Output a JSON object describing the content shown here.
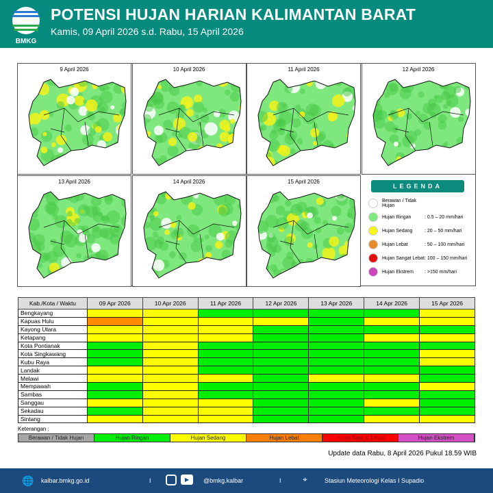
{
  "header": {
    "logo_text": "BMKG",
    "title": "POTENSI HUJAN HARIAN KALIMANTAN BARAT",
    "subtitle": "Kamis, 09 April 2026 s.d. Rabu, 15 April 2026"
  },
  "maps": [
    {
      "date": "9 April 2026",
      "yellow": 0.3
    },
    {
      "date": "10 April 2026",
      "yellow": 0.35
    },
    {
      "date": "11 April 2026",
      "yellow": 0.22
    },
    {
      "date": "12 April 2026",
      "yellow": 0.08
    },
    {
      "date": "13 April 2026",
      "yellow": 0.05
    },
    {
      "date": "14 April 2026",
      "yellow": 0.2
    },
    {
      "date": "15 April 2026",
      "yellow": 0.15
    }
  ],
  "legend": {
    "title": "LEGENDA",
    "items": [
      {
        "label": "Berawan / Tidak Hujan",
        "range": "",
        "color": "#ffffff"
      },
      {
        "label": "Hujan Ringan",
        "range": ": 0.5 – 20 mm/hari",
        "color": "#7ee87e"
      },
      {
        "label": "Hujan Sedang",
        "range": ": 20 – 50 mm/hari",
        "color": "#f5f51c"
      },
      {
        "label": "Hujan Lebat",
        "range": ": 50 – 100 mm/hari",
        "color": "#e8892a"
      },
      {
        "label": "Hujan Sangat Lebat",
        "range": ": 100 – 150 mm/hari",
        "color": "#e01010"
      },
      {
        "label": "Hujan Ekstrem",
        "range": ": >150 mm/hari",
        "color": "#cc44bb"
      }
    ]
  },
  "table": {
    "header": [
      "Kab./Kota / Waktu",
      "09 Apr 2026",
      "10 Apr 2026",
      "11 Apr 2026",
      "12 Apr 2026",
      "13 Apr 2026",
      "14 Apr 2026",
      "15 Apr 2026"
    ],
    "rows": [
      {
        "name": "Bengkayang",
        "cat": "SSRRRRS"
      },
      {
        "name": "Kapuas Hulu",
        "cat": "LSSSRSS"
      },
      {
        "name": "Kayong Utara",
        "cat": "SSSRRRR"
      },
      {
        "name": "Ketapang",
        "cat": "SSSRRSS"
      },
      {
        "name": "Kota Pontianak",
        "cat": "RSRRRRR"
      },
      {
        "name": "Kota Singkawang",
        "cat": "RSRRRRS"
      },
      {
        "name": "Kubu Raya",
        "cat": "RSRRRRS"
      },
      {
        "name": "Landak",
        "cat": "SSRRRRR"
      },
      {
        "name": "Melawi",
        "cat": "SSSRSSR"
      },
      {
        "name": "Mempawah",
        "cat": "RSRRRRS"
      },
      {
        "name": "Sambas",
        "cat": "RSRRRRR"
      },
      {
        "name": "Sanggau",
        "cat": "SSSRRSR"
      },
      {
        "name": "Sekadau",
        "cat": "RSSRRRR"
      },
      {
        "name": "Sintang",
        "cat": "SSSRRSS"
      }
    ]
  },
  "category_colors": {
    "R": "#00ee00",
    "S": "#ffff00",
    "L": "#ff8c00"
  },
  "keterangan": {
    "label": "Keterangan :",
    "items": [
      {
        "label": "Berawan / Tidak Hujan",
        "color": "#a6a6a6",
        "text": "#222"
      },
      {
        "label": "Hujan Ringan",
        "color": "#00ee00",
        "text": "#222"
      },
      {
        "label": "Hujan Sedang",
        "color": "#ffff00",
        "text": "#222"
      },
      {
        "label": "Hujan Lebat",
        "color": "#ff7f00",
        "text": "#222"
      },
      {
        "label": "Hujan Sangat Lebat",
        "color": "#ff0000",
        "text": "#8b0000"
      },
      {
        "label": "Hujan Ekstrem",
        "color": "#d24fc4",
        "text": "#222"
      }
    ]
  },
  "update": "Update data Rabu, 8 April 2026 Pukul 18.59 WIB",
  "footer": {
    "website": "kalbar.bmkg.go.id",
    "social": "@bmkg.kalbar",
    "station": "Stasiun Meteorologi Kelas I Supadio",
    "sep": "I"
  }
}
